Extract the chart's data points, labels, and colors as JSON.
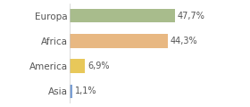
{
  "categories": [
    "Europa",
    "Africa",
    "America",
    "Asia"
  ],
  "values": [
    47.7,
    44.3,
    6.9,
    1.1
  ],
  "labels": [
    "47,7%",
    "44,3%",
    "6,9%",
    "1,1%"
  ],
  "bar_colors": [
    "#a8bc8c",
    "#e8b882",
    "#e8c85a",
    "#7b9fd4"
  ],
  "background_color": "#ffffff",
  "xlim": [
    0,
    68
  ],
  "bar_height": 0.55,
  "label_fontsize": 7,
  "tick_fontsize": 7.5
}
